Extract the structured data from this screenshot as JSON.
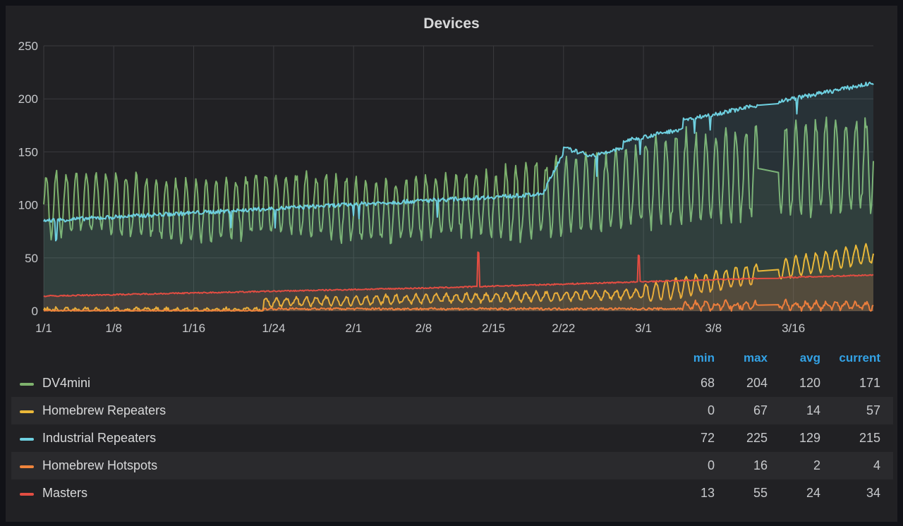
{
  "panel": {
    "title": "Devices"
  },
  "chart_data": {
    "type": "line",
    "title": "Devices",
    "xlabel": "",
    "ylabel": "",
    "ylim": [
      0,
      250
    ],
    "y_ticks": [
      "0",
      "50",
      "100",
      "150",
      "200",
      "250"
    ],
    "x_ticks": [
      {
        "label": "1/1",
        "day": 0
      },
      {
        "label": "1/8",
        "day": 7
      },
      {
        "label": "1/16",
        "day": 15
      },
      {
        "label": "1/24",
        "day": 23
      },
      {
        "label": "2/1",
        "day": 31
      },
      {
        "label": "2/8",
        "day": 38
      },
      {
        "label": "2/15",
        "day": 45
      },
      {
        "label": "2/22",
        "day": 52
      },
      {
        "label": "3/1",
        "day": 60
      },
      {
        "label": "3/8",
        "day": 67
      },
      {
        "label": "3/16",
        "day": 75
      }
    ],
    "xlim_days": [
      0,
      83
    ],
    "grid": true,
    "legend_position": "bottom",
    "series": [
      {
        "name": "DV4mini",
        "color": "#7eb26d",
        "min": 68,
        "max": 204,
        "avg": 120,
        "current": 171
      },
      {
        "name": "Homebrew Repeaters",
        "color": "#eab839",
        "min": 0,
        "max": 67,
        "avg": 14,
        "current": 57
      },
      {
        "name": "Industrial Repeaters",
        "color": "#6ed0e0",
        "min": 72,
        "max": 225,
        "avg": 129,
        "current": 215
      },
      {
        "name": "Homebrew Hotspots",
        "color": "#ef843c",
        "min": 0,
        "max": 16,
        "avg": 2,
        "current": 4
      },
      {
        "name": "Masters",
        "color": "#e24d42",
        "min": 13,
        "max": 55,
        "avg": 24,
        "current": 34
      }
    ]
  },
  "legend": {
    "headers": {
      "min": "min",
      "max": "max",
      "avg": "avg",
      "current": "current"
    }
  }
}
